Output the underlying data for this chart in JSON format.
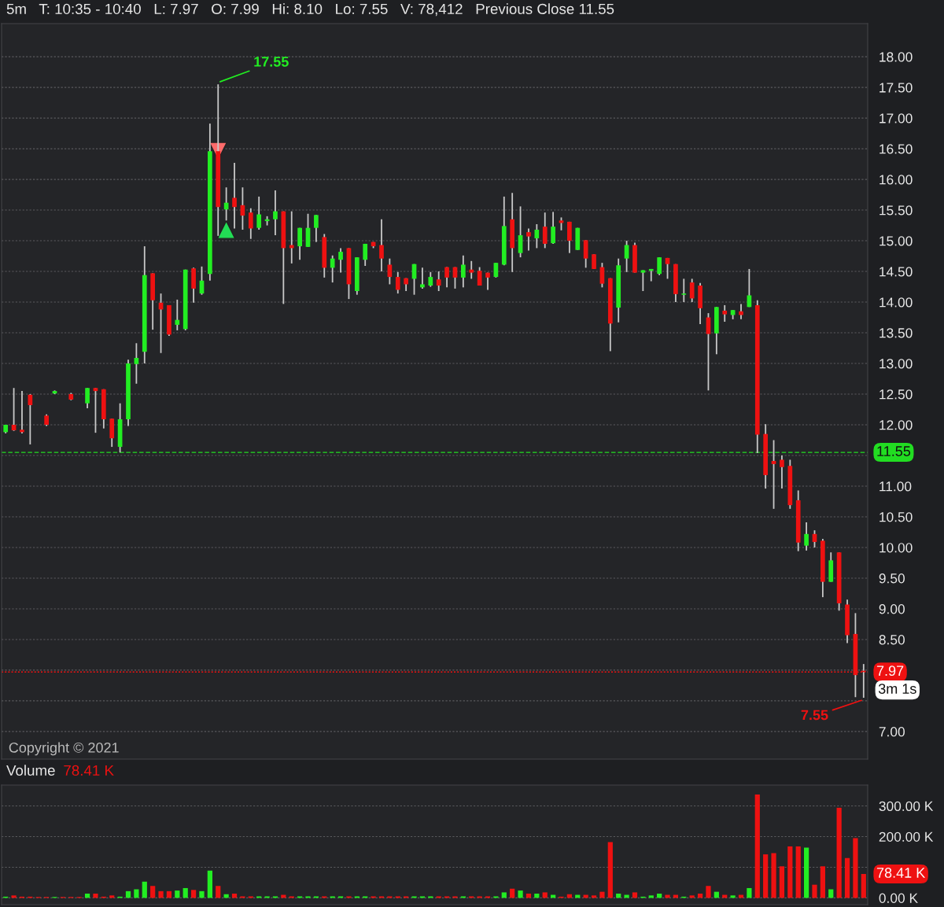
{
  "chart_data": [
    {
      "type": "candlestick",
      "title": "5m   T: 10:35 - 10:40   L: 7.97   O: 7.99   Hi: 8.10   Lo: 7.55   V: 78,412   Previous Close 11.55",
      "categories": [
        null,
        null,
        null,
        null,
        null,
        null,
        null,
        null,
        null,
        null,
        null,
        null,
        null,
        null,
        null,
        null,
        null,
        null,
        null,
        null,
        null,
        null,
        null,
        null,
        null,
        null,
        null,
        null,
        null,
        null,
        null,
        null,
        null,
        null,
        null,
        null,
        null,
        null,
        null,
        null,
        null,
        null,
        null,
        null,
        null,
        null,
        null,
        null,
        null,
        null,
        null,
        null,
        null,
        null,
        null,
        null,
        null,
        null,
        null,
        null,
        null,
        null,
        null,
        null,
        null,
        null,
        null,
        null,
        null,
        null,
        null,
        null,
        null,
        null,
        null,
        null,
        null,
        null,
        null,
        null,
        null,
        null,
        null,
        null,
        null,
        null,
        null,
        null,
        null,
        null,
        null,
        null,
        null,
        null,
        null,
        null,
        null,
        null,
        null,
        null,
        null,
        null,
        null,
        null,
        null,
        null
      ],
      "ohlc": [
        [
          11.88,
          12.0,
          11.86,
          12.0
        ],
        [
          12.0,
          12.6,
          11.9,
          11.91
        ],
        [
          11.92,
          12.55,
          11.86,
          11.88
        ],
        [
          12.49,
          12.5,
          11.68,
          12.32
        ],
        null,
        [
          12.15,
          12.17,
          11.98,
          12.0
        ],
        [
          12.51,
          12.56,
          12.5,
          12.55
        ],
        null,
        [
          12.5,
          12.52,
          12.4,
          12.41
        ],
        null,
        [
          12.35,
          12.6,
          12.27,
          12.6
        ],
        [
          12.6,
          12.6,
          11.87,
          12.55
        ],
        [
          12.58,
          12.58,
          11.94,
          12.09
        ],
        [
          12.1,
          12.1,
          11.64,
          11.78
        ],
        [
          11.64,
          12.35,
          11.55,
          12.09
        ],
        [
          12.09,
          13.06,
          11.98,
          13.0
        ],
        [
          12.99,
          13.33,
          12.67,
          13.09
        ],
        [
          13.19,
          14.91,
          13.0,
          14.44
        ],
        [
          14.47,
          14.47,
          13.55,
          14.03
        ],
        [
          13.99,
          14.14,
          13.17,
          13.88
        ],
        [
          13.95,
          13.95,
          13.45,
          13.47
        ],
        [
          13.63,
          14.04,
          13.54,
          13.71
        ],
        [
          13.56,
          14.53,
          13.54,
          14.53
        ],
        [
          14.55,
          14.56,
          13.99,
          14.22
        ],
        [
          14.14,
          14.58,
          14.12,
          14.35
        ],
        [
          14.46,
          16.91,
          14.35,
          16.46
        ],
        [
          16.46,
          17.55,
          15.08,
          15.55
        ],
        [
          15.51,
          15.87,
          15.33,
          15.62
        ],
        [
          15.7,
          16.27,
          15.2,
          15.55
        ],
        [
          15.58,
          15.87,
          15.18,
          15.41
        ],
        [
          15.46,
          15.53,
          15.03,
          15.2
        ],
        [
          15.21,
          15.72,
          15.18,
          15.43
        ],
        [
          15.32,
          15.4,
          15.25,
          15.35
        ],
        [
          15.35,
          15.82,
          15.09,
          15.48
        ],
        [
          15.48,
          15.48,
          13.97,
          14.88
        ],
        [
          14.93,
          15.48,
          14.63,
          14.88
        ],
        [
          14.91,
          15.21,
          14.69,
          15.21
        ],
        [
          14.9,
          15.44,
          14.9,
          15.21
        ],
        [
          15.21,
          15.42,
          14.98,
          15.42
        ],
        [
          15.06,
          15.11,
          14.4,
          14.56
        ],
        [
          14.56,
          14.76,
          14.32,
          14.71
        ],
        [
          14.69,
          14.88,
          14.48,
          14.82
        ],
        [
          14.88,
          14.88,
          14.05,
          14.29
        ],
        [
          14.18,
          14.73,
          14.12,
          14.73
        ],
        [
          14.69,
          14.95,
          14.59,
          14.95
        ],
        [
          14.98,
          14.98,
          14.88,
          14.91
        ],
        [
          14.93,
          15.35,
          14.5,
          14.71
        ],
        [
          14.61,
          14.71,
          14.29,
          14.41
        ],
        [
          14.41,
          14.49,
          14.14,
          14.2
        ],
        [
          14.39,
          14.39,
          14.18,
          14.29
        ],
        [
          14.38,
          14.62,
          14.12,
          14.62
        ],
        [
          14.24,
          14.56,
          14.22,
          14.29
        ],
        [
          14.27,
          14.49,
          14.25,
          14.41
        ],
        [
          14.37,
          14.5,
          14.18,
          14.27
        ],
        [
          14.57,
          14.57,
          14.24,
          14.4
        ],
        [
          14.57,
          14.57,
          14.22,
          14.4
        ],
        [
          14.4,
          14.76,
          14.24,
          14.61
        ],
        [
          14.53,
          14.67,
          14.38,
          14.48
        ],
        [
          14.51,
          14.57,
          14.27,
          14.27
        ],
        [
          14.48,
          14.48,
          14.2,
          14.4
        ],
        [
          14.41,
          14.64,
          14.4,
          14.64
        ],
        [
          14.61,
          15.72,
          14.6,
          15.24
        ],
        [
          15.35,
          15.78,
          14.49,
          14.88
        ],
        [
          14.8,
          15.56,
          14.73,
          15.09
        ],
        [
          15.14,
          15.2,
          14.84,
          15.07
        ],
        [
          15.04,
          15.27,
          14.88,
          15.18
        ],
        [
          15.23,
          15.46,
          14.88,
          14.95
        ],
        [
          14.96,
          15.47,
          14.95,
          15.23
        ],
        [
          15.33,
          15.38,
          15.17,
          15.29
        ],
        [
          15.31,
          15.31,
          14.8,
          15.0
        ],
        [
          14.85,
          15.21,
          14.85,
          15.21
        ],
        [
          15.01,
          15.01,
          14.56,
          14.71
        ],
        [
          14.78,
          14.78,
          14.54,
          14.54
        ],
        [
          14.57,
          14.64,
          14.24,
          14.3
        ],
        [
          14.39,
          14.39,
          13.2,
          13.65
        ],
        [
          13.91,
          14.71,
          13.67,
          14.6
        ],
        [
          14.71,
          15.0,
          14.49,
          14.93
        ],
        [
          14.93,
          14.97,
          14.48,
          14.48
        ],
        [
          14.48,
          14.52,
          14.18,
          14.52
        ],
        [
          14.51,
          14.54,
          14.34,
          14.54
        ],
        [
          14.46,
          14.73,
          14.44,
          14.73
        ],
        [
          14.72,
          14.72,
          14.38,
          14.62
        ],
        [
          14.62,
          14.62,
          14.0,
          14.13
        ],
        [
          14.12,
          14.38,
          14.0,
          14.14
        ],
        [
          14.32,
          14.38,
          14.0,
          14.06
        ],
        [
          14.27,
          14.31,
          13.64,
          13.9
        ],
        [
          13.75,
          13.82,
          12.56,
          13.48
        ],
        [
          13.49,
          13.92,
          13.15,
          13.92
        ],
        [
          13.86,
          13.95,
          13.68,
          13.8
        ],
        [
          13.79,
          13.87,
          13.72,
          13.87
        ],
        [
          13.85,
          13.97,
          13.72,
          13.79
        ],
        [
          13.92,
          14.54,
          13.92,
          14.11
        ],
        [
          13.95,
          14.03,
          11.54,
          11.84
        ],
        [
          11.85,
          12.01,
          10.96,
          11.18
        ],
        [
          11.41,
          11.75,
          10.63,
          11.36
        ],
        [
          11.43,
          11.5,
          10.96,
          11.31
        ],
        [
          11.33,
          11.43,
          10.63,
          10.69
        ],
        [
          10.77,
          10.93,
          9.94,
          10.08
        ],
        [
          10.03,
          10.41,
          9.95,
          10.22
        ],
        [
          10.22,
          10.28,
          10.0,
          10.09
        ],
        [
          10.11,
          10.14,
          9.19,
          9.44
        ],
        [
          9.44,
          9.92,
          9.44,
          9.79
        ],
        [
          9.92,
          9.92,
          8.97,
          9.09
        ],
        [
          9.07,
          9.15,
          8.44,
          8.57
        ],
        [
          8.59,
          8.93,
          7.56,
          7.92
        ],
        [
          7.99,
          8.1,
          7.55,
          7.97
        ]
      ],
      "ylim": [
        6.55,
        18.54
      ],
      "yticks": [
        {
          "value": 7,
          "label": "7.00"
        },
        {
          "value": 7.5,
          "label": null
        },
        {
          "value": 8,
          "label": null
        },
        {
          "value": 8.5,
          "label": "8.50"
        },
        {
          "value": 9,
          "label": "9.00"
        },
        {
          "value": 9.5,
          "label": "9.50"
        },
        {
          "value": 10,
          "label": "10.00"
        },
        {
          "value": 10.5,
          "label": "10.50"
        },
        {
          "value": 11,
          "label": "11.00"
        },
        {
          "value": 11.5,
          "label": null
        },
        {
          "value": 12,
          "label": "12.00"
        },
        {
          "value": 12.5,
          "label": "12.50"
        },
        {
          "value": 13,
          "label": "13.00"
        },
        {
          "value": 13.5,
          "label": "13.50"
        },
        {
          "value": 14,
          "label": "14.00"
        },
        {
          "value": 14.5,
          "label": "14.50"
        },
        {
          "value": 15,
          "label": "15.00"
        },
        {
          "value": 15.5,
          "label": "15.50"
        },
        {
          "value": 16,
          "label": "16.00"
        },
        {
          "value": 16.5,
          "label": "16.50"
        },
        {
          "value": 17,
          "label": "17.00"
        },
        {
          "value": 17.5,
          "label": "17.50"
        },
        {
          "value": 18,
          "label": "18.00"
        }
      ],
      "ref_lines": [
        {
          "axis": "y",
          "value": 11.55,
          "label": "11.55",
          "color": "#22dd22",
          "line_style": "dashed"
        },
        {
          "axis": "y",
          "value": 7.97,
          "label": "7.97",
          "color": "#ee1111",
          "line_style": "dotted"
        }
      ],
      "annotations": [
        "17.55",
        "7.55",
        "Copyright © 2021",
        "3m 1s"
      ],
      "grid": "y",
      "tick_labels": "y"
    },
    {
      "type": "bar",
      "title": "Volume",
      "subtitle": "78.41 K",
      "categories": [
        null,
        null,
        null,
        null,
        null,
        null,
        null,
        null,
        null,
        null,
        null,
        null,
        null,
        null,
        null,
        null,
        null,
        null,
        null,
        null,
        null,
        null,
        null,
        null,
        null,
        null,
        null,
        null,
        null,
        null,
        null,
        null,
        null,
        null,
        null,
        null,
        null,
        null,
        null,
        null,
        null,
        null,
        null,
        null,
        null,
        null,
        null,
        null,
        null,
        null,
        null,
        null,
        null,
        null,
        null,
        null,
        null,
        null,
        null,
        null,
        null,
        null,
        null,
        null,
        null,
        null,
        null,
        null,
        null,
        null,
        null,
        null,
        null,
        null,
        null,
        null,
        null,
        null,
        null,
        null,
        null,
        null,
        null,
        null,
        null,
        null,
        null,
        null,
        null,
        null,
        null,
        null,
        null,
        null,
        null,
        null,
        null,
        null,
        null,
        null,
        null,
        null,
        null,
        null,
        null,
        null
      ],
      "values": [
        4,
        8,
        4,
        4,
        3,
        3,
        3,
        3,
        3,
        3,
        14,
        14,
        4,
        8,
        4,
        22,
        28,
        53,
        39,
        22,
        22,
        24,
        32,
        26,
        22,
        89,
        39,
        12,
        14,
        5,
        5,
        5,
        5,
        5,
        10,
        5,
        5,
        5,
        5,
        5,
        5,
        5,
        5,
        5,
        5,
        5,
        5,
        5,
        5,
        5,
        5,
        5,
        5,
        5,
        5,
        5,
        5,
        5,
        5,
        5,
        5,
        18,
        30,
        24,
        14,
        14,
        18,
        10,
        4,
        12,
        10,
        10,
        8,
        20,
        182,
        14,
        10,
        18,
        4,
        8,
        14,
        10,
        10,
        4,
        8,
        14,
        39,
        20,
        10,
        8,
        10,
        32,
        337,
        142,
        146,
        103,
        168,
        168,
        164,
        43,
        103,
        28,
        294,
        130,
        195,
        78
      ],
      "colors": [
        "#22ee22",
        "#ee1111",
        "#ee1111",
        "#ee1111",
        "#ee1111",
        "#ee1111",
        "#22ee22",
        "#ee1111",
        "#ee1111",
        "#ee1111",
        "#22ee22",
        "#ee1111",
        "#ee1111",
        "#ee1111",
        "#22ee22",
        "#22ee22",
        "#22ee22",
        "#22ee22",
        "#ee1111",
        "#ee1111",
        "#ee1111",
        "#22ee22",
        "#22ee22",
        "#ee1111",
        "#22ee22",
        "#22ee22",
        "#ee1111",
        "#22ee22",
        "#ee1111",
        "#ee1111",
        "#ee1111",
        "#22ee22",
        "#22ee22",
        "#22ee22",
        "#ee1111",
        "#ee1111",
        "#22ee22",
        "#22ee22",
        "#22ee22",
        "#ee1111",
        "#22ee22",
        "#22ee22",
        "#ee1111",
        "#22ee22",
        "#22ee22",
        "#ee1111",
        "#ee1111",
        "#ee1111",
        "#ee1111",
        "#ee1111",
        "#22ee22",
        "#22ee22",
        "#22ee22",
        "#ee1111",
        "#ee1111",
        "#ee1111",
        "#22ee22",
        "#ee1111",
        "#ee1111",
        "#ee1111",
        "#22ee22",
        "#22ee22",
        "#ee1111",
        "#22ee22",
        "#ee1111",
        "#22ee22",
        "#ee1111",
        "#22ee22",
        "#ee1111",
        "#ee1111",
        "#22ee22",
        "#ee1111",
        "#ee1111",
        "#ee1111",
        "#ee1111",
        "#22ee22",
        "#22ee22",
        "#ee1111",
        "#22ee22",
        "#22ee22",
        "#22ee22",
        "#ee1111",
        "#ee1111",
        "#22ee22",
        "#ee1111",
        "#ee1111",
        "#ee1111",
        "#22ee22",
        "#ee1111",
        "#22ee22",
        "#ee1111",
        "#22ee22",
        "#ee1111",
        "#ee1111",
        "#ee1111",
        "#ee1111",
        "#ee1111",
        "#ee1111",
        "#22ee22",
        "#ee1111",
        "#ee1111",
        "#22ee22",
        "#ee1111",
        "#ee1111",
        "#ee1111",
        "#ee1111"
      ],
      "ylim": [
        -22,
        368
      ],
      "yticks": [
        {
          "value": 0,
          "label": "0.00 K"
        },
        {
          "value": 100,
          "label": null
        },
        {
          "value": 200,
          "label": "200.00 K"
        },
        {
          "value": 300,
          "label": "300.00 K"
        }
      ],
      "annotations": [
        "78.41 K"
      ],
      "grid": "y",
      "tick_labels": "y"
    }
  ]
}
